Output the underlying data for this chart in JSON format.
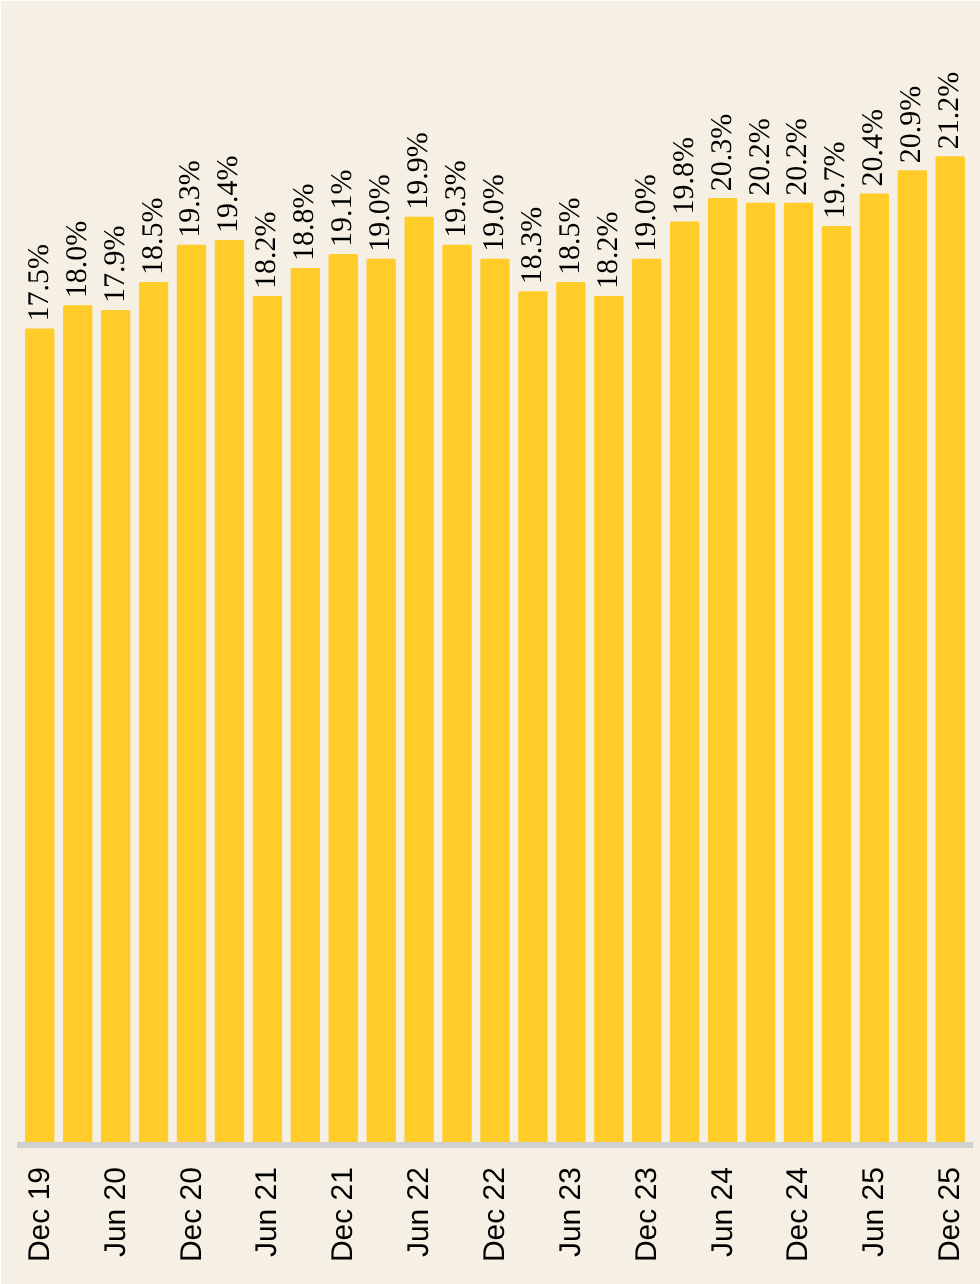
{
  "chart_data": {
    "type": "bar",
    "categories": [
      "Dec 19",
      null,
      "Jun 20",
      null,
      "Dec 20",
      null,
      "Jun 21",
      null,
      "Dec 21",
      null,
      "Jun 22",
      null,
      "Dec 22",
      null,
      "Jun 23",
      null,
      "Dec 23",
      null,
      "Jun 24",
      null,
      "Dec 24",
      null,
      "Jun 25",
      null,
      "Dec 25"
    ],
    "values": [
      17.5,
      18.0,
      17.9,
      18.5,
      19.3,
      19.4,
      18.2,
      18.8,
      19.1,
      19.0,
      19.9,
      19.3,
      19.0,
      18.3,
      18.5,
      18.2,
      19.0,
      19.8,
      20.3,
      20.2,
      20.2,
      19.7,
      20.4,
      20.9,
      21.2
    ],
    "value_labels": [
      "17.5%",
      "18.0%",
      "17.9%",
      "18.5%",
      "19.3%",
      "19.4%",
      "18.2%",
      "18.8%",
      "19.1%",
      "19.0%",
      "19.9%",
      "19.3%",
      "19.0%",
      "18.3%",
      "18.5%",
      "18.2%",
      "19.0%",
      "19.8%",
      "20.3%",
      "20.2%",
      "20.2%",
      "19.7%",
      "20.4%",
      "20.9%",
      "21.2%"
    ],
    "color": "#ffcc29",
    "grid": false
  }
}
